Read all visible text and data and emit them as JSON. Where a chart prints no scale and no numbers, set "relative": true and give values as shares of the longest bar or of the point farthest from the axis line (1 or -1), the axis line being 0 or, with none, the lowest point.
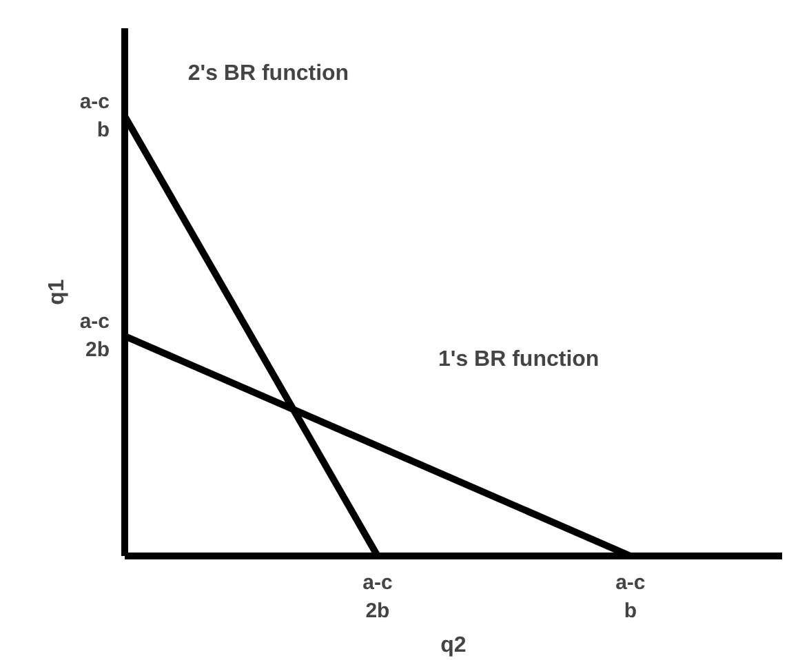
{
  "chart_data": {
    "type": "line",
    "xlabel": "q2",
    "ylabel": "q1",
    "relative": true,
    "categories": [
      null,
      "a-c\n2b",
      "a-c\nb"
    ],
    "series": [
      {
        "color": "#000000",
        "values": [
          1,
          0,
          null
        ]
      },
      {
        "color": "#000000",
        "values": [
          0.5,
          null,
          0
        ]
      }
    ],
    "annotations": [
      "2's BR function",
      "1's BR function",
      "a-c\nb",
      "a-c\n2b"
    ],
    "grid": false
  }
}
